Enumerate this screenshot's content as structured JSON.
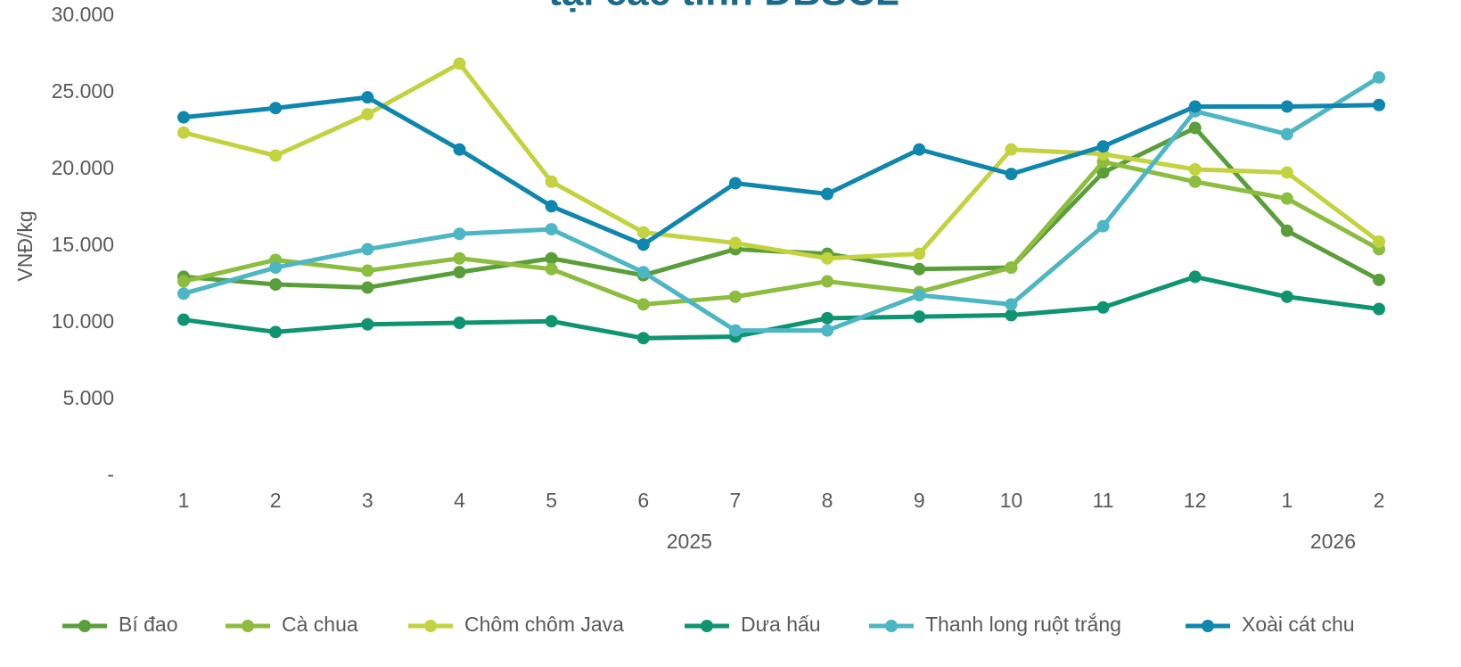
{
  "chart_data": {
    "type": "line",
    "title": "tại các tỉnh ĐBSCL",
    "y_label": "VNĐ/kg",
    "categories": [
      "1",
      "2",
      "3",
      "4",
      "5",
      "6",
      "7",
      "8",
      "9",
      "10",
      "11",
      "12",
      "1",
      "2"
    ],
    "group_labels": [
      "2025",
      "2026"
    ],
    "group_sizes": [
      12,
      2
    ],
    "ylim": [
      0,
      30000
    ],
    "yticks": [
      {
        "value": 0,
        "label": "-"
      },
      {
        "value": 5000,
        "label": "5.000"
      },
      {
        "value": 10000,
        "label": "10.000"
      },
      {
        "value": 15000,
        "label": "15.000"
      },
      {
        "value": 20000,
        "label": "20.000"
      },
      {
        "value": 25000,
        "label": "25.000"
      },
      {
        "value": 30000,
        "label": "30.000"
      }
    ],
    "grid": false,
    "legend": "bottom",
    "series": [
      {
        "name": "Bí đao",
        "color": "#5a9e3a",
        "values": [
          13000,
          12500,
          12300,
          13300,
          14200,
          13100,
          14800,
          14500,
          13500,
          13600,
          19800,
          22700,
          16000,
          12800
        ]
      },
      {
        "name": "Cà chua",
        "color": "#8cbd3f",
        "values": [
          12700,
          14100,
          13400,
          14200,
          13500,
          11200,
          11700,
          12700,
          12000,
          13600,
          20500,
          19200,
          18100,
          14800
        ]
      },
      {
        "name": "Chôm chôm Java",
        "color": "#c2d33f",
        "values": [
          22400,
          20900,
          23600,
          26900,
          19200,
          15900,
          15200,
          14200,
          14500,
          21300,
          21000,
          20000,
          19800,
          15300
        ]
      },
      {
        "name": "Dưa hấu",
        "color": "#0e9470",
        "values": [
          10200,
          9400,
          9900,
          10000,
          10100,
          9000,
          9100,
          10300,
          10400,
          10500,
          11000,
          13000,
          11700,
          10900
        ]
      },
      {
        "name": "Thanh long ruột trắng",
        "color": "#4db6c4",
        "values": [
          11900,
          13600,
          14800,
          15800,
          16100,
          13300,
          9500,
          9500,
          11800,
          11200,
          16300,
          23800,
          22300,
          26000
        ]
      },
      {
        "name": "Xoài cát chu",
        "color": "#0e86ae",
        "values": [
          23400,
          24000,
          24700,
          21300,
          17600,
          15100,
          19100,
          18400,
          21300,
          19700,
          21500,
          24100,
          24100,
          24200
        ]
      }
    ]
  }
}
